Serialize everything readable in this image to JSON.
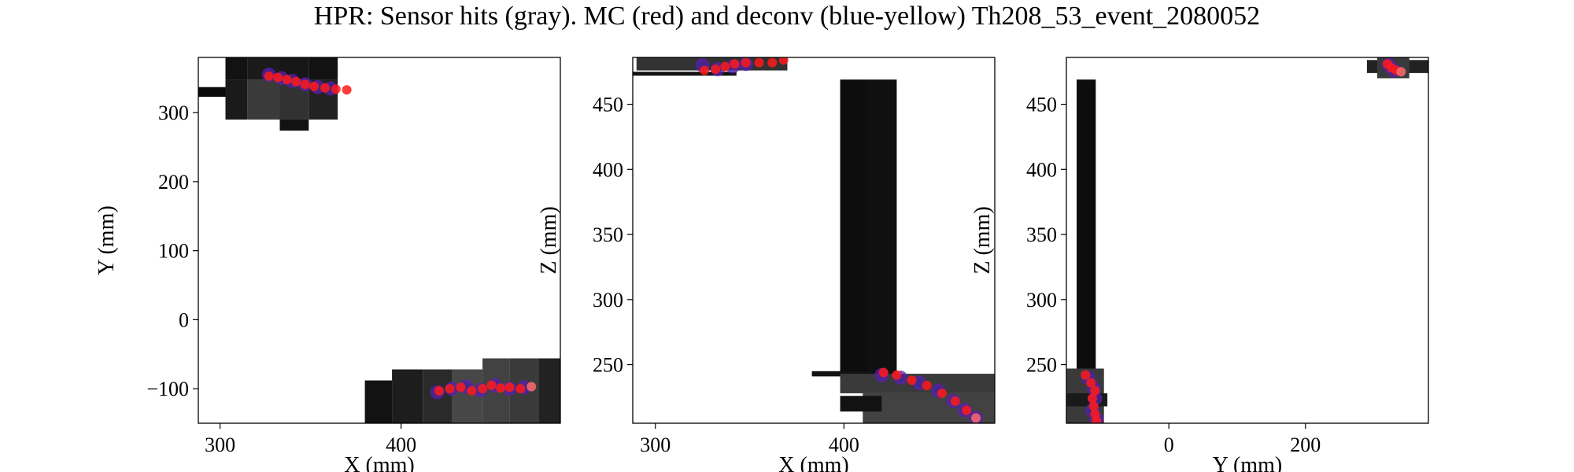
{
  "title": "HPR: Sensor hits (gray). MC (red) and deconv (blue-yellow) Th208_53_event_2080052",
  "colors": {
    "mc": "#ff1a1a",
    "mc_light": "#ff6b6b",
    "deconv_edge": "#5a1fb0",
    "deconv_core": "#3b2a8a",
    "sensor_dark": "#0a0a0a",
    "sensor_light": "#9a9a9a"
  },
  "chart_data": [
    {
      "type": "scatter",
      "xlabel": "X (mm)",
      "ylabel": "Y (mm)",
      "xlim": [
        288,
        488
      ],
      "ylim": [
        -150,
        380
      ],
      "xticks": [
        300,
        400
      ],
      "yticks": [
        -100,
        0,
        100,
        200,
        300
      ],
      "ytick_labels": [
        "−100",
        "0",
        "100",
        "200",
        "300"
      ],
      "sensor_hits": [
        {
          "x0": 288,
          "x1": 303,
          "y0": 323,
          "y1": 337,
          "v": 0.0
        },
        {
          "x0": 303,
          "x1": 315,
          "y0": 348,
          "y1": 380,
          "v": 0.05
        },
        {
          "x0": 315,
          "x1": 333,
          "y0": 348,
          "y1": 380,
          "v": 0.1
        },
        {
          "x0": 333,
          "x1": 349,
          "y0": 348,
          "y1": 380,
          "v": 0.08
        },
        {
          "x0": 349,
          "x1": 365,
          "y0": 348,
          "y1": 380,
          "v": 0.05
        },
        {
          "x0": 303,
          "x1": 315,
          "y0": 290,
          "y1": 348,
          "v": 0.1
        },
        {
          "x0": 315,
          "x1": 333,
          "y0": 290,
          "y1": 348,
          "v": 0.3
        },
        {
          "x0": 333,
          "x1": 349,
          "y0": 290,
          "y1": 348,
          "v": 0.25
        },
        {
          "x0": 349,
          "x1": 365,
          "y0": 290,
          "y1": 348,
          "v": 0.15
        },
        {
          "x0": 333,
          "x1": 349,
          "y0": 274,
          "y1": 290,
          "v": 0.05
        },
        {
          "x0": 380,
          "x1": 395,
          "y0": -150,
          "y1": -88,
          "v": 0.05
        },
        {
          "x0": 395,
          "x1": 412,
          "y0": -150,
          "y1": -72,
          "v": 0.12
        },
        {
          "x0": 412,
          "x1": 428,
          "y0": -150,
          "y1": -72,
          "v": 0.2
        },
        {
          "x0": 428,
          "x1": 445,
          "y0": -150,
          "y1": -72,
          "v": 0.38
        },
        {
          "x0": 445,
          "x1": 460,
          "y0": -150,
          "y1": -56,
          "v": 0.35
        },
        {
          "x0": 460,
          "x1": 476,
          "y0": -150,
          "y1": -56,
          "v": 0.3
        },
        {
          "x0": 476,
          "x1": 488,
          "y0": -150,
          "y1": -56,
          "v": 0.15
        }
      ],
      "deconv": [
        [
          327,
          355
        ],
        [
          334,
          350
        ],
        [
          340,
          346
        ],
        [
          347,
          341
        ],
        [
          354,
          337
        ],
        [
          361,
          335
        ],
        [
          420,
          -105
        ],
        [
          428,
          -100
        ],
        [
          436,
          -97
        ],
        [
          444,
          -102
        ],
        [
          452,
          -95
        ],
        [
          460,
          -100
        ],
        [
          468,
          -98
        ]
      ],
      "mc": [
        [
          327,
          353
        ],
        [
          332,
          351
        ],
        [
          337,
          348
        ],
        [
          342,
          345
        ],
        [
          347,
          341
        ],
        [
          352,
          338
        ],
        [
          358,
          336
        ],
        [
          364,
          334
        ],
        [
          370,
          333
        ],
        [
          421,
          -103
        ],
        [
          427,
          -100
        ],
        [
          433,
          -98
        ],
        [
          439,
          -103
        ],
        [
          445,
          -100
        ],
        [
          450,
          -95
        ],
        [
          455,
          -99
        ],
        [
          460,
          -98
        ],
        [
          466,
          -100
        ],
        [
          472,
          -97
        ]
      ]
    },
    {
      "type": "scatter",
      "xlabel": "X (mm)",
      "ylabel": "Z (mm)",
      "xlim": [
        288,
        480
      ],
      "ylim": [
        205,
        486
      ],
      "xticks": [
        300,
        400
      ],
      "yticks": [
        250,
        300,
        350,
        400,
        450
      ],
      "sensor_hits": [
        {
          "x0": 288,
          "x1": 343,
          "y0": 472,
          "y1": 475,
          "v": 0.05
        },
        {
          "x0": 290,
          "x1": 370,
          "y0": 476,
          "y1": 486,
          "v": 0.25
        },
        {
          "x0": 398,
          "x1": 413,
          "y0": 240,
          "y1": 469,
          "v": 0.02
        },
        {
          "x0": 413,
          "x1": 428,
          "y0": 240,
          "y1": 469,
          "v": 0.04
        },
        {
          "x0": 383,
          "x1": 420,
          "y0": 241,
          "y1": 245,
          "v": 0.05
        },
        {
          "x0": 398,
          "x1": 480,
          "y0": 228,
          "y1": 243,
          "v": 0.3
        },
        {
          "x0": 410,
          "x1": 480,
          "y0": 205,
          "y1": 228,
          "v": 0.35
        },
        {
          "x0": 398,
          "x1": 420,
          "y0": 214,
          "y1": 226,
          "v": 0.05
        }
      ],
      "deconv": [
        [
          325,
          480
        ],
        [
          333,
          477
        ],
        [
          341,
          479
        ],
        [
          348,
          481
        ],
        [
          420,
          242
        ],
        [
          430,
          240
        ],
        [
          440,
          236
        ],
        [
          450,
          230
        ],
        [
          458,
          222
        ],
        [
          464,
          215
        ],
        [
          470,
          209
        ]
      ],
      "mc": [
        [
          326,
          476
        ],
        [
          332,
          477
        ],
        [
          337,
          479
        ],
        [
          342,
          481
        ],
        [
          348,
          482
        ],
        [
          355,
          482
        ],
        [
          362,
          482
        ],
        [
          368,
          484
        ],
        [
          421,
          244
        ],
        [
          428,
          242
        ],
        [
          436,
          238
        ],
        [
          444,
          234
        ],
        [
          452,
          228
        ],
        [
          459,
          222
        ],
        [
          465,
          215
        ],
        [
          470,
          209
        ]
      ]
    },
    {
      "type": "scatter",
      "xlabel": "Y (mm)",
      "ylabel": "Z (mm)",
      "xlim": [
        -150,
        380
      ],
      "ylim": [
        205,
        486
      ],
      "xticks": [
        0,
        200
      ],
      "yticks": [
        250,
        300,
        350,
        400,
        450
      ],
      "sensor_hits": [
        {
          "x0": -135,
          "x1": -107,
          "y0": 240,
          "y1": 469,
          "v": 0.02
        },
        {
          "x0": -150,
          "x1": -95,
          "y0": 205,
          "y1": 247,
          "v": 0.3
        },
        {
          "x0": -150,
          "x1": -90,
          "y0": 218,
          "y1": 228,
          "v": 0.1
        },
        {
          "x0": 290,
          "x1": 380,
          "y0": 474,
          "y1": 484,
          "v": 0.15
        },
        {
          "x0": 305,
          "x1": 352,
          "y0": 470,
          "y1": 486,
          "v": 0.3
        }
      ],
      "deconv": [
        [
          -118,
          240
        ],
        [
          -110,
          232
        ],
        [
          -108,
          224
        ],
        [
          -112,
          215
        ],
        [
          -106,
          208
        ],
        [
          322,
          480
        ],
        [
          330,
          476
        ]
      ],
      "mc": [
        [
          -122,
          242
        ],
        [
          -114,
          236
        ],
        [
          -108,
          230
        ],
        [
          -112,
          224
        ],
        [
          -110,
          218
        ],
        [
          -108,
          212
        ],
        [
          -106,
          207
        ],
        [
          320,
          481
        ],
        [
          326,
          478
        ],
        [
          333,
          476
        ],
        [
          340,
          475
        ]
      ]
    }
  ]
}
